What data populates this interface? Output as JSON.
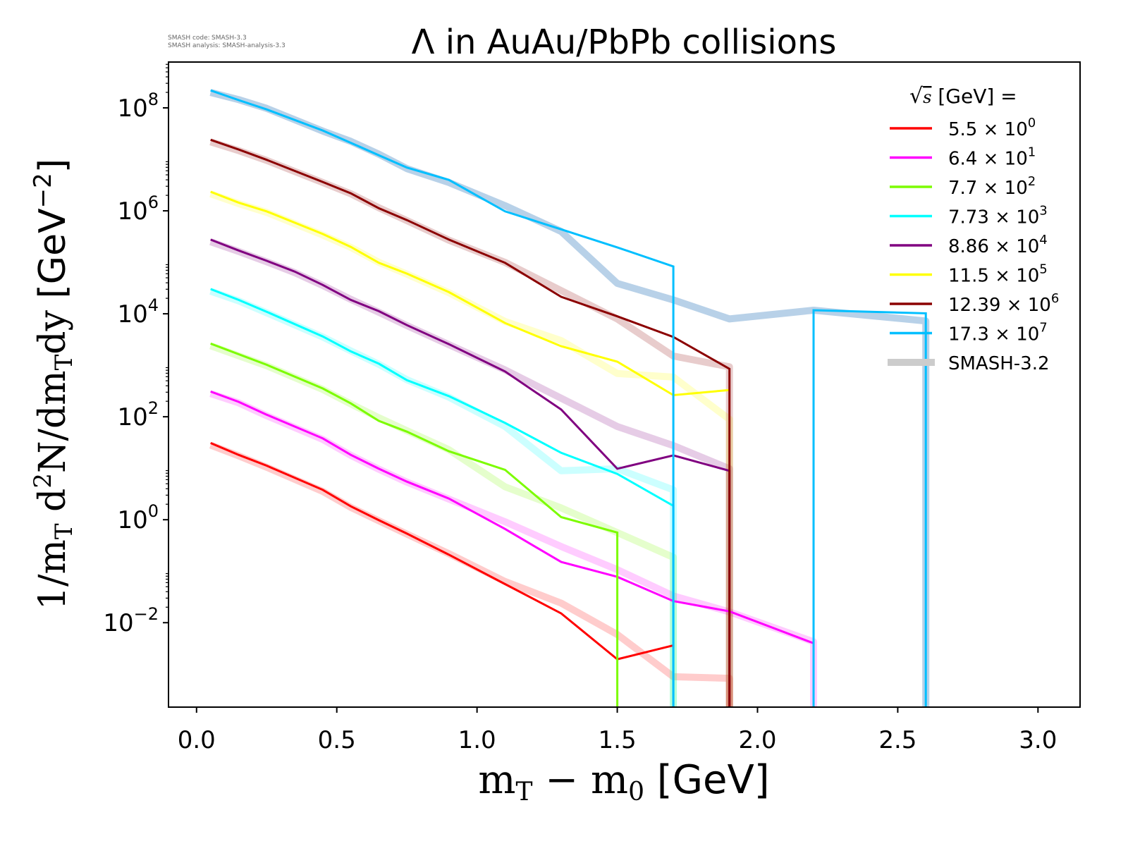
{
  "chart_data": {
    "type": "line",
    "title": "Λ in AuAu/PbPb collisions",
    "xlabel": "m_T − m_0 [GeV]",
    "ylabel": "1/m_T d²N/dm_Tdy [GeV⁻²]",
    "xlabel_parts": {
      "a": "m",
      "a_sub": "T",
      "b": " − m",
      "b_sub": "0",
      "unit": " [GeV]"
    },
    "ylabel_parts": {
      "a": "1/m",
      "a_sub": "T",
      "b": " d",
      "b_sup": "2",
      "c": "N/dm",
      "c_sub": "T",
      "d": "dy",
      "unit": " [GeV",
      "unit_sup": "−2",
      "unit_end": "]"
    },
    "xlim": [
      -0.1,
      3.15
    ],
    "ylim_log10": [
      -3.64,
      8.89
    ],
    "yscale": "log",
    "note": "values given as log10(y); null = zero yield (line drops off axis)",
    "xticks": [
      0.0,
      0.5,
      1.0,
      1.5,
      2.0,
      2.5,
      3.0
    ],
    "xtick_labels": [
      "0.0",
      "0.5",
      "1.0",
      "1.5",
      "2.0",
      "2.5",
      "3.0"
    ],
    "yticks_log10": [
      -2,
      0,
      2,
      4,
      6,
      8
    ],
    "ytick_labels": [
      {
        "base": "10",
        "exp": "−2"
      },
      {
        "base": "10",
        "exp": "0"
      },
      {
        "base": "10",
        "exp": "2"
      },
      {
        "base": "10",
        "exp": "4"
      },
      {
        "base": "10",
        "exp": "6"
      },
      {
        "base": "10",
        "exp": "8"
      }
    ],
    "legend": {
      "placement": "top-right",
      "title_sqrt": "s",
      "title_rest": " [GeV] ="
    },
    "series": [
      {
        "name": "5.5 × 10^0",
        "mant": "5.5 × 10",
        "exp": "0",
        "color": "#ff0000",
        "points": [
          [
            0.05,
            1.49
          ],
          [
            0.15,
            1.26
          ],
          [
            0.25,
            1.05
          ],
          [
            0.45,
            0.58
          ],
          [
            0.55,
            0.26
          ],
          [
            0.65,
            -0.01
          ],
          [
            0.75,
            -0.27
          ],
          [
            0.9,
            -0.68
          ],
          [
            1.1,
            -1.25
          ],
          [
            1.3,
            -1.82
          ],
          [
            1.5,
            -2.71
          ],
          [
            1.7,
            -2.44
          ]
        ],
        "reference": [
          [
            0.05,
            1.45
          ],
          [
            0.15,
            1.24
          ],
          [
            0.25,
            1.02
          ],
          [
            0.45,
            0.55
          ],
          [
            0.55,
            0.24
          ],
          [
            0.65,
            -0.02
          ],
          [
            0.75,
            -0.28
          ],
          [
            0.9,
            -0.66
          ],
          [
            1.1,
            -1.2
          ],
          [
            1.3,
            -1.62
          ],
          [
            1.5,
            -2.23
          ],
          [
            1.7,
            -3.05
          ],
          [
            1.9,
            -3.08
          ],
          [
            1.9,
            null
          ]
        ]
      },
      {
        "name": "6.4 × 10^1",
        "mant": "6.4 × 10",
        "exp": "1",
        "color": "#ff00ff",
        "points": [
          [
            0.05,
            2.49
          ],
          [
            0.15,
            2.29
          ],
          [
            0.25,
            2.04
          ],
          [
            0.45,
            1.58
          ],
          [
            0.55,
            1.26
          ],
          [
            0.65,
            0.99
          ],
          [
            0.75,
            0.74
          ],
          [
            0.9,
            0.41
          ],
          [
            1.1,
            -0.18
          ],
          [
            1.3,
            -0.82
          ],
          [
            1.5,
            -1.11
          ],
          [
            1.7,
            -1.58
          ],
          [
            1.9,
            -1.78
          ],
          [
            2.2,
            -2.4
          ],
          [
            2.2,
            null
          ]
        ],
        "reference": [
          [
            0.05,
            2.45
          ],
          [
            0.15,
            2.27
          ],
          [
            0.25,
            2.02
          ],
          [
            0.45,
            1.56
          ],
          [
            0.55,
            1.25
          ],
          [
            0.65,
            0.98
          ],
          [
            0.75,
            0.73
          ],
          [
            0.9,
            0.4
          ],
          [
            1.1,
            -0.04
          ],
          [
            1.3,
            -0.52
          ],
          [
            1.5,
            -0.97
          ],
          [
            1.7,
            -1.48
          ],
          [
            1.9,
            -1.79
          ],
          [
            2.2,
            -2.37
          ],
          [
            2.2,
            null
          ]
        ]
      },
      {
        "name": "7.7 × 10^2",
        "mant": "7.7 × 10",
        "exp": "2",
        "color": "#7cfc00",
        "points": [
          [
            0.05,
            3.42
          ],
          [
            0.25,
            3.01
          ],
          [
            0.45,
            2.55
          ],
          [
            0.55,
            2.26
          ],
          [
            0.65,
            1.92
          ],
          [
            0.75,
            1.71
          ],
          [
            0.9,
            1.33
          ],
          [
            1.1,
            0.97
          ],
          [
            1.3,
            0.05
          ],
          [
            1.5,
            -0.25
          ],
          [
            1.5,
            null
          ]
        ],
        "reference": [
          [
            0.05,
            3.38
          ],
          [
            0.25,
            2.99
          ],
          [
            0.45,
            2.53
          ],
          [
            0.55,
            2.25
          ],
          [
            0.65,
            1.98
          ],
          [
            0.75,
            1.73
          ],
          [
            0.9,
            1.36
          ],
          [
            1.1,
            0.64
          ],
          [
            1.3,
            0.23
          ],
          [
            1.5,
            -0.25
          ],
          [
            1.7,
            -0.73
          ],
          [
            1.7,
            null
          ]
        ]
      },
      {
        "name": "7.73 × 10^3",
        "mant": "7.73 × 10",
        "exp": "3",
        "color": "#00ffff",
        "points": [
          [
            0.05,
            4.48
          ],
          [
            0.15,
            4.27
          ],
          [
            0.25,
            4.04
          ],
          [
            0.45,
            3.56
          ],
          [
            0.55,
            3.27
          ],
          [
            0.65,
            3.03
          ],
          [
            0.75,
            2.71
          ],
          [
            0.9,
            2.4
          ],
          [
            1.1,
            1.88
          ],
          [
            1.3,
            1.3
          ],
          [
            1.5,
            0.89
          ],
          [
            1.7,
            0.27
          ],
          [
            1.7,
            null
          ]
        ],
        "reference": [
          [
            0.05,
            4.44
          ],
          [
            0.15,
            4.25
          ],
          [
            0.25,
            4.02
          ],
          [
            0.45,
            3.55
          ],
          [
            0.55,
            3.28
          ],
          [
            0.65,
            3.02
          ],
          [
            0.75,
            2.72
          ],
          [
            0.9,
            2.38
          ],
          [
            1.1,
            1.81
          ],
          [
            1.3,
            0.95
          ],
          [
            1.5,
            0.99
          ],
          [
            1.7,
            0.58
          ],
          [
            1.7,
            null
          ]
        ]
      },
      {
        "name": "8.86 × 10^4",
        "mant": "8.86 × 10",
        "exp": "4",
        "color": "#800080",
        "points": [
          [
            0.05,
            5.44
          ],
          [
            0.15,
            5.23
          ],
          [
            0.25,
            5.03
          ],
          [
            0.35,
            4.82
          ],
          [
            0.45,
            4.56
          ],
          [
            0.55,
            4.27
          ],
          [
            0.65,
            4.05
          ],
          [
            0.75,
            3.78
          ],
          [
            0.9,
            3.41
          ],
          [
            1.1,
            2.88
          ],
          [
            1.3,
            2.14
          ],
          [
            1.5,
            0.99
          ],
          [
            1.7,
            1.25
          ],
          [
            1.9,
            0.95
          ],
          [
            1.9,
            null
          ]
        ],
        "reference": [
          [
            0.05,
            5.4
          ],
          [
            0.15,
            5.21
          ],
          [
            0.25,
            5.01
          ],
          [
            0.35,
            4.8
          ],
          [
            0.45,
            4.55
          ],
          [
            0.55,
            4.28
          ],
          [
            0.65,
            4.03
          ],
          [
            0.75,
            3.77
          ],
          [
            0.9,
            3.4
          ],
          [
            1.1,
            2.91
          ],
          [
            1.3,
            2.36
          ],
          [
            1.5,
            1.81
          ],
          [
            1.7,
            1.44
          ],
          [
            1.9,
            0.99
          ],
          [
            1.9,
            null
          ]
        ]
      },
      {
        "name": "11.5 × 10^5",
        "mant": "11.5 × 10",
        "exp": "5",
        "color": "#ffff00",
        "points": [
          [
            0.05,
            6.37
          ],
          [
            0.15,
            6.16
          ],
          [
            0.25,
            5.99
          ],
          [
            0.45,
            5.55
          ],
          [
            0.55,
            5.3
          ],
          [
            0.65,
            4.99
          ],
          [
            0.75,
            4.78
          ],
          [
            0.9,
            4.42
          ],
          [
            1.1,
            3.82
          ],
          [
            1.3,
            3.37
          ],
          [
            1.5,
            3.07
          ],
          [
            1.7,
            2.42
          ],
          [
            1.9,
            2.52
          ]
        ],
        "reference": [
          [
            0.05,
            6.33
          ],
          [
            0.15,
            6.14
          ],
          [
            0.25,
            5.97
          ],
          [
            0.45,
            5.53
          ],
          [
            0.55,
            5.29
          ],
          [
            0.65,
            5.0
          ],
          [
            0.75,
            4.77
          ],
          [
            0.9,
            4.41
          ],
          [
            1.1,
            3.85
          ],
          [
            1.3,
            3.48
          ],
          [
            1.5,
            2.84
          ],
          [
            1.7,
            2.77
          ],
          [
            1.9,
            1.95
          ],
          [
            1.9,
            null
          ]
        ]
      },
      {
        "name": "12.39 × 10^6",
        "mant": "12.39 × 10",
        "exp": "6",
        "color": "#8b0000",
        "points": [
          [
            0.05,
            7.38
          ],
          [
            0.15,
            7.19
          ],
          [
            0.25,
            6.99
          ],
          [
            0.45,
            6.56
          ],
          [
            0.55,
            6.34
          ],
          [
            0.65,
            6.05
          ],
          [
            0.75,
            5.82
          ],
          [
            0.9,
            5.44
          ],
          [
            1.1,
            4.99
          ],
          [
            1.3,
            4.33
          ],
          [
            1.5,
            3.95
          ],
          [
            1.7,
            3.55
          ],
          [
            1.9,
            2.93
          ],
          [
            1.9,
            null
          ]
        ],
        "reference": [
          [
            0.05,
            7.34
          ],
          [
            0.15,
            7.17
          ],
          [
            0.25,
            6.98
          ],
          [
            0.45,
            6.55
          ],
          [
            0.55,
            6.33
          ],
          [
            0.65,
            6.06
          ],
          [
            0.75,
            5.81
          ],
          [
            0.9,
            5.43
          ],
          [
            1.1,
            5.0
          ],
          [
            1.3,
            4.45
          ],
          [
            1.5,
            3.9
          ],
          [
            1.7,
            3.18
          ],
          [
            1.9,
            2.97
          ],
          [
            1.9,
            null
          ]
        ]
      },
      {
        "name": "17.3 × 10^7",
        "mant": "17.3 × 10",
        "exp": "7",
        "color": "#00bfff",
        "points": [
          [
            0.05,
            8.34
          ],
          [
            0.15,
            8.15
          ],
          [
            0.25,
            7.97
          ],
          [
            0.45,
            7.56
          ],
          [
            0.55,
            7.32
          ],
          [
            0.65,
            7.08
          ],
          [
            0.75,
            6.84
          ],
          [
            0.9,
            6.6
          ],
          [
            1.1,
            5.99
          ],
          [
            1.3,
            5.64
          ],
          [
            1.5,
            5.29
          ],
          [
            1.7,
            4.92
          ],
          [
            1.7,
            null
          ],
          [
            2.2,
            null
          ],
          [
            2.2,
            4.07
          ],
          [
            2.6,
            4.01
          ],
          [
            2.6,
            null
          ]
        ],
        "reference": [
          [
            0.05,
            8.3
          ],
          [
            0.15,
            8.16
          ],
          [
            0.25,
            7.99
          ],
          [
            0.45,
            7.55
          ],
          [
            0.55,
            7.35
          ],
          [
            0.65,
            7.1
          ],
          [
            0.75,
            6.82
          ],
          [
            0.9,
            6.55
          ],
          [
            1.1,
            6.1
          ],
          [
            1.3,
            5.6
          ],
          [
            1.5,
            4.59
          ],
          [
            1.7,
            4.27
          ],
          [
            1.9,
            3.9
          ],
          [
            2.2,
            4.07
          ],
          [
            2.6,
            3.86
          ],
          [
            2.6,
            null
          ]
        ]
      }
    ],
    "reference_label": "SMASH-3.2",
    "reference_color": "#cccccc"
  },
  "meta": {
    "code_label": "SMASH code:",
    "code_value": "SMASH-3.3",
    "analysis_label": "SMASH analysis:",
    "analysis_value": "SMASH-analysis-3.3"
  }
}
